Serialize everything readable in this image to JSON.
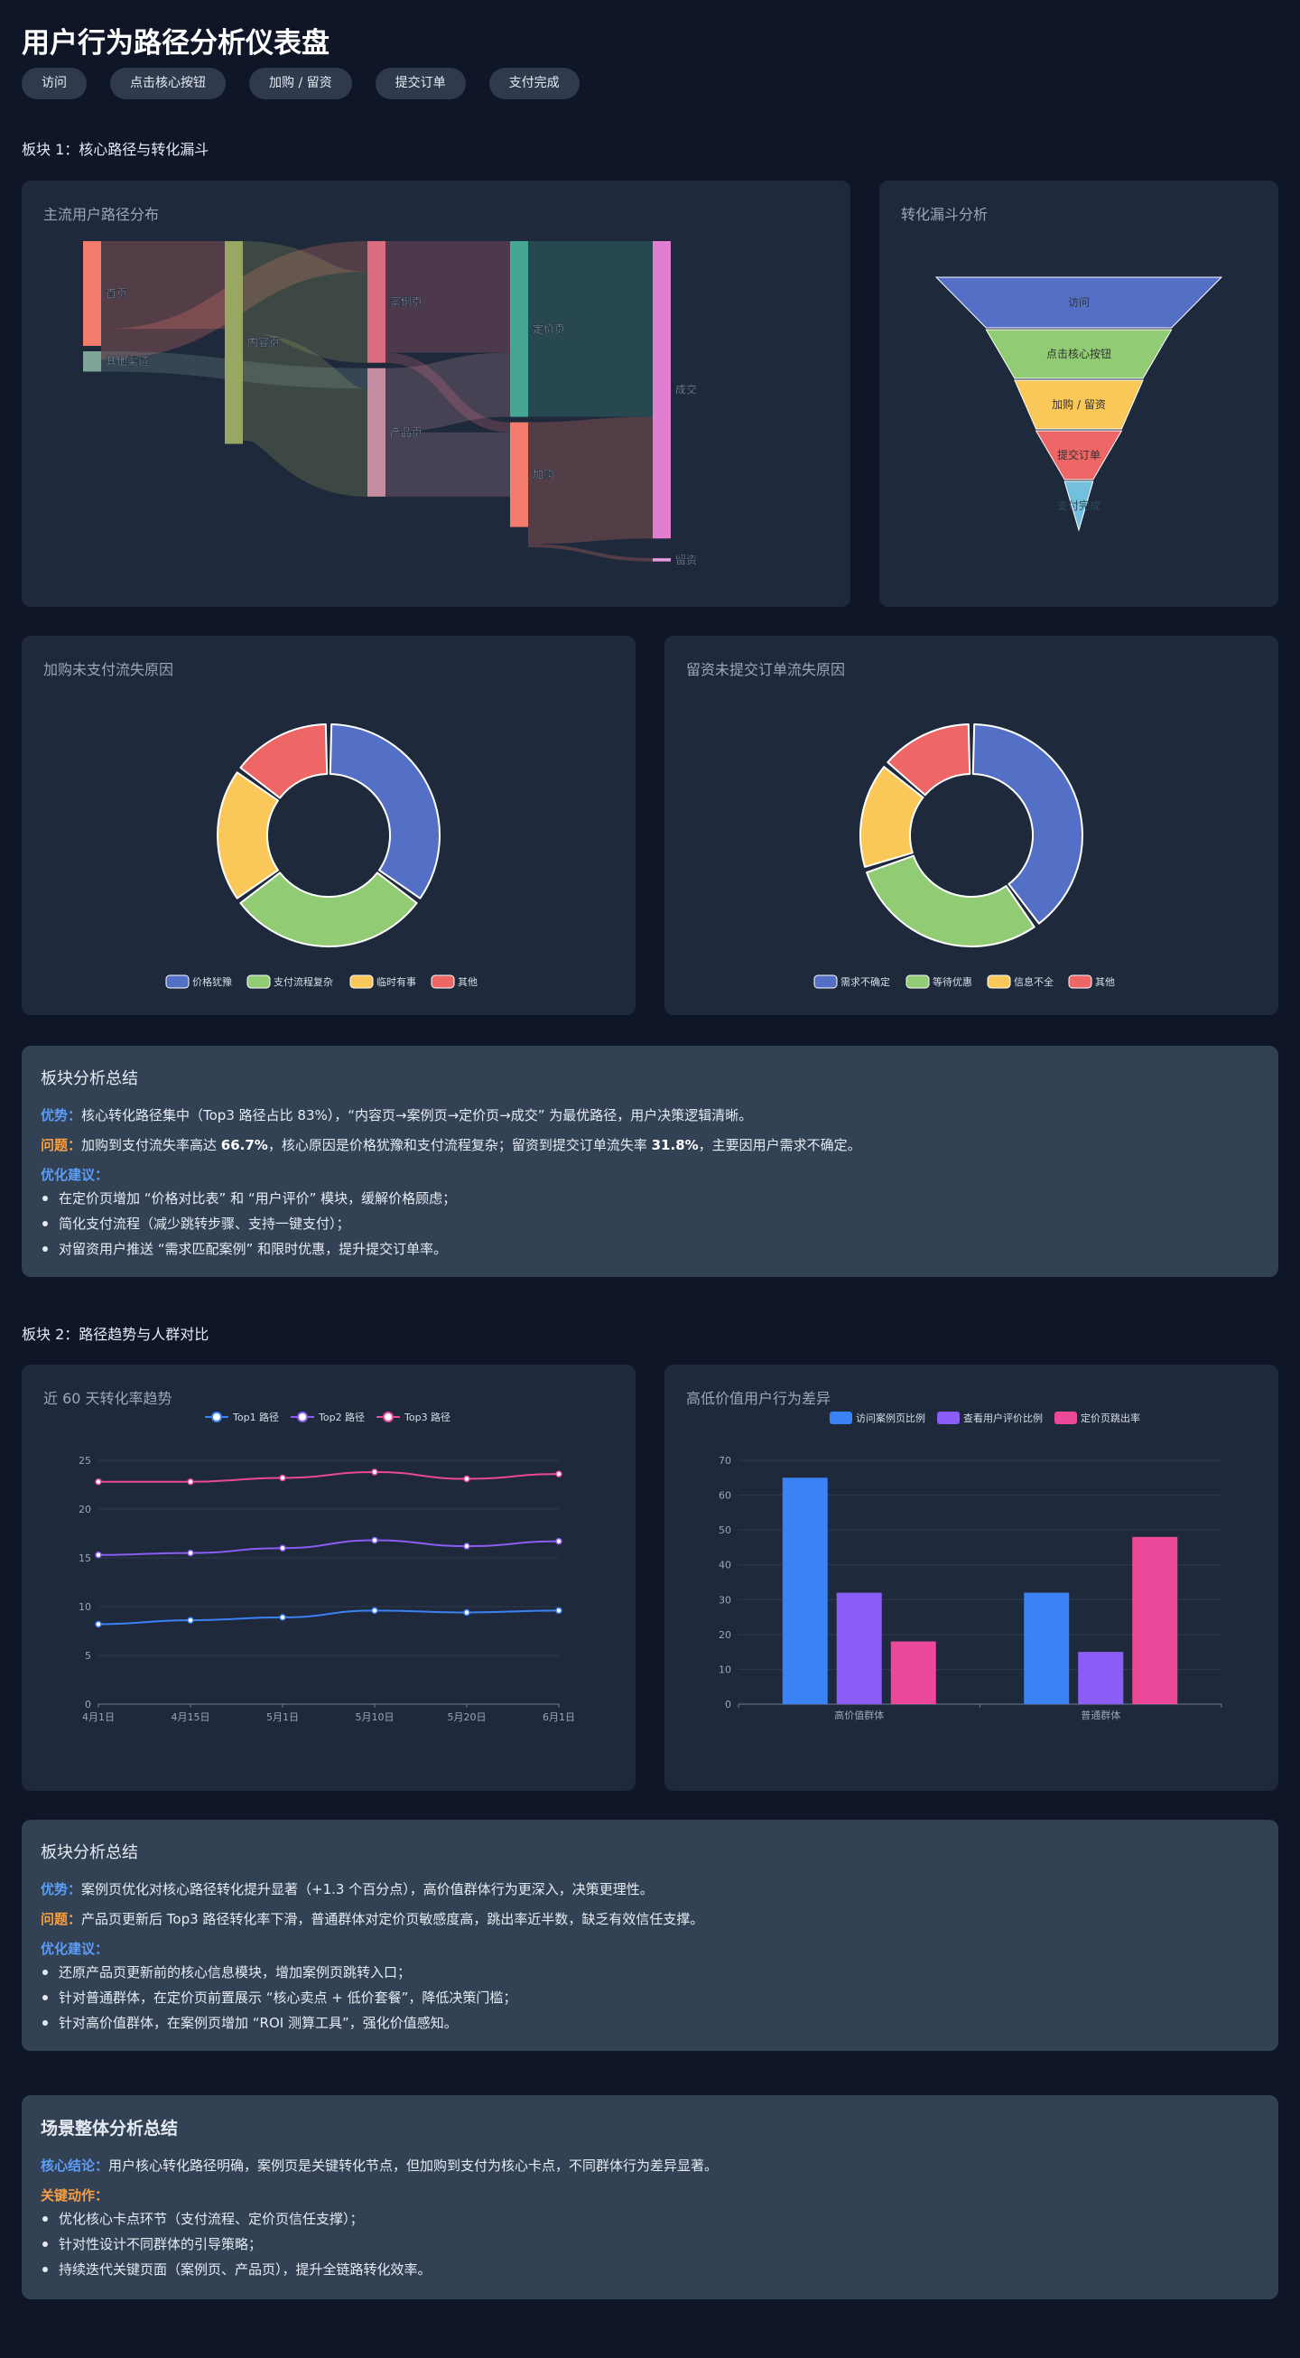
{
  "page_title": "用户行为路径分析仪表盘",
  "steps": [
    "访问",
    "点击核心按钮",
    "加购 / 留资",
    "提交订单",
    "支付完成"
  ],
  "section1_title": "板块 1：核心路径与转化漏斗",
  "section2_title": "板块 2：路径趋势与人群对比",
  "colors": {
    "background": "#0e1628",
    "card": "#1e293b",
    "summary_card": "#334155",
    "accent_blue": "#5b9cf6",
    "accent_orange": "#f59e42"
  },
  "chart_data": [
    {
      "id": "sankey",
      "type": "sankey",
      "title": "主流用户路径分布",
      "nodes": [
        {
          "name": "首页",
          "value": 31
        },
        {
          "name": "其他渠道",
          "value": 6
        },
        {
          "name": "内容页",
          "value": 60
        },
        {
          "name": "案例页",
          "value": 36
        },
        {
          "name": "产品页",
          "value": 38
        },
        {
          "name": "定价页",
          "value": 52
        },
        {
          "name": "加购",
          "value": 31
        },
        {
          "name": "成交",
          "value": 88
        },
        {
          "name": "留资",
          "value": 1
        }
      ],
      "links": [
        {
          "source": "首页",
          "target": "内容页",
          "value": 26
        },
        {
          "source": "首页",
          "target": "案例页",
          "value": 9
        },
        {
          "source": "其他渠道",
          "target": "产品页",
          "value": 6
        },
        {
          "source": "内容页",
          "target": "案例页",
          "value": 27
        },
        {
          "source": "内容页",
          "target": "产品页",
          "value": 32
        },
        {
          "source": "案例页",
          "target": "定价页",
          "value": 33
        },
        {
          "source": "案例页",
          "target": "加购",
          "value": 3
        },
        {
          "source": "产品页",
          "target": "定价页",
          "value": 19
        },
        {
          "source": "产品页",
          "target": "加购",
          "value": 19
        },
        {
          "source": "定价页",
          "target": "成交",
          "value": 52
        },
        {
          "source": "加购",
          "target": "成交",
          "value": 36
        },
        {
          "source": "加购",
          "target": "留资",
          "value": 1
        }
      ]
    },
    {
      "id": "funnel",
      "type": "funnel",
      "title": "转化漏斗分析",
      "categories": [
        "访问",
        "点击核心按钮",
        "加购 / 留资",
        "提交订单",
        "支付完成"
      ],
      "values": [
        100,
        65,
        45,
        30,
        10
      ]
    },
    {
      "id": "donut1",
      "type": "pie",
      "title": "加购未支付流失原因",
      "categories": [
        "价格犹豫",
        "支付流程复杂",
        "临时有事",
        "其他"
      ],
      "values": [
        35,
        30,
        20,
        15
      ],
      "colors": [
        "#5470c6",
        "#91cc75",
        "#fac858",
        "#ee6666"
      ]
    },
    {
      "id": "donut2",
      "type": "pie",
      "title": "留资未提交订单流失原因",
      "categories": [
        "需求不确定",
        "等待优惠",
        "信息不全",
        "其他"
      ],
      "values": [
        40,
        30,
        16,
        14
      ],
      "colors": [
        "#5470c6",
        "#91cc75",
        "#fac858",
        "#ee6666"
      ]
    },
    {
      "id": "line",
      "type": "line",
      "title": "近 60 天转化率趋势",
      "x": [
        "4月1日",
        "4月15日",
        "5月1日",
        "5月10日",
        "5月20日",
        "6月1日"
      ],
      "ylim": [
        0,
        25
      ],
      "yticks": [
        0,
        5,
        10,
        15,
        20,
        25
      ],
      "series": [
        {
          "name": "Top1 路径",
          "values": [
            8.2,
            8.6,
            8.9,
            9.6,
            9.4,
            9.6
          ],
          "color": "#3b82f6"
        },
        {
          "name": "Top2 路径",
          "values": [
            15.3,
            15.5,
            16.0,
            16.8,
            16.2,
            16.7
          ],
          "color": "#8b5cf6"
        },
        {
          "name": "Top3 路径",
          "values": [
            22.8,
            22.8,
            23.2,
            23.8,
            23.1,
            23.6
          ],
          "color": "#ec4899"
        }
      ]
    },
    {
      "id": "bar",
      "type": "bar",
      "title": "高低价值用户行为差异",
      "categories": [
        "高价值群体",
        "普通群体"
      ],
      "ylim": [
        0,
        70
      ],
      "yticks": [
        0,
        10,
        20,
        30,
        40,
        50,
        60,
        70
      ],
      "series": [
        {
          "name": "访问案例页比例",
          "values": [
            65,
            32
          ],
          "color": "#3b82f6"
        },
        {
          "name": "查看用户评价比例",
          "values": [
            32,
            15
          ],
          "color": "#8b5cf6"
        },
        {
          "name": "定价页跳出率",
          "values": [
            18,
            48
          ],
          "color": "#ec4899"
        }
      ]
    }
  ],
  "summary1": {
    "title": "板块分析总结",
    "adv_label": "优势：",
    "adv_text": "核心转化路径集中（Top3 路径占比 83%），“内容页→案例页→定价页→成交” 为最优路径，用户决策逻辑清晰。",
    "prob_label": "问题：",
    "prob_a": "加购到支付流失率高达 ",
    "prob_b": "66.7%",
    "prob_c": "，核心原因是价格犹豫和支付流程复杂；留资到提交订单流失率 ",
    "prob_d": "31.8%",
    "prob_e": "，主要因用户需求不确定。",
    "sugg_label": "优化建议：",
    "items": [
      "在定价页增加 “价格对比表” 和 “用户评价” 模块，缓解价格顾虑；",
      "简化支付流程（减少跳转步骤、支持一键支付）；",
      "对留资用户推送 “需求匹配案例” 和限时优惠，提升提交订单率。"
    ]
  },
  "summary2": {
    "title": "板块分析总结",
    "adv_label": "优势：",
    "adv_text": "案例页优化对核心路径转化提升显著（+1.3 个百分点），高价值群体行为更深入，决策更理性。",
    "prob_label": "问题：",
    "prob_text": "产品页更新后 Top3 路径转化率下滑，普通群体对定价页敏感度高，跳出率近半数，缺乏有效信任支撑。",
    "sugg_label": "优化建议：",
    "items": [
      "还原产品页更新前的核心信息模块，增加案例页跳转入口；",
      "针对普通群体，在定价页前置展示 “核心卖点 + 低价套餐”，降低决策门槛；",
      "针对高价值群体，在案例页增加 “ROI 测算工具”，强化价值感知。"
    ]
  },
  "summary3": {
    "title": "场景整体分析总结",
    "core_label": "核心结论：",
    "core_text": "用户核心转化路径明确，案例页是关键转化节点，但加购到支付为核心卡点，不同群体行为差异显著。",
    "action_label": "关键动作：",
    "items": [
      "优化核心卡点环节（支付流程、定价页信任支撑）；",
      "针对性设计不同群体的引导策略；",
      "持续迭代关键页面（案例页、产品页），提升全链路转化效率。"
    ]
  }
}
